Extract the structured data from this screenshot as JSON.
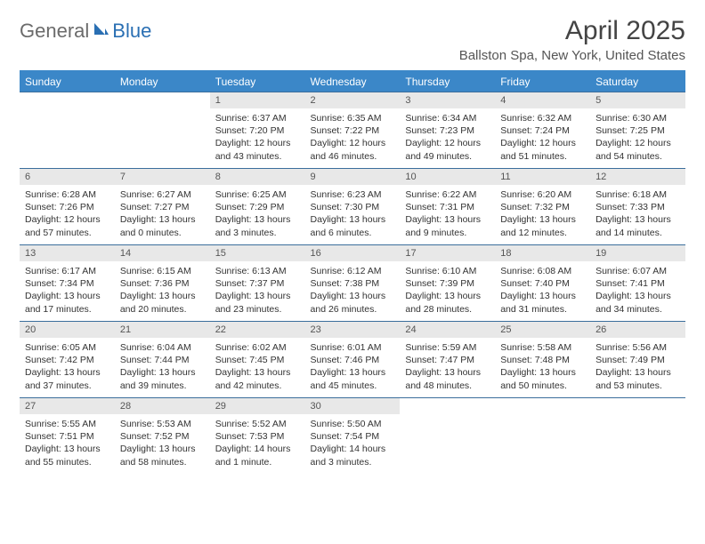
{
  "header": {
    "logo_general": "General",
    "logo_blue": "Blue",
    "month_title": "April 2025",
    "location": "Ballston Spa, New York, United States"
  },
  "styling": {
    "header_bg": "#3b87c8",
    "header_text": "#ffffff",
    "day_num_bg": "#e8e8e8",
    "border_color": "#3b6e9c",
    "page_bg": "#ffffff",
    "text_color": "#333333"
  },
  "days_header": [
    "Sunday",
    "Monday",
    "Tuesday",
    "Wednesday",
    "Thursday",
    "Friday",
    "Saturday"
  ],
  "weeks": [
    [
      null,
      null,
      {
        "num": "1",
        "sunrise": "Sunrise: 6:37 AM",
        "sunset": "Sunset: 7:20 PM",
        "daylight": "Daylight: 12 hours and 43 minutes."
      },
      {
        "num": "2",
        "sunrise": "Sunrise: 6:35 AM",
        "sunset": "Sunset: 7:22 PM",
        "daylight": "Daylight: 12 hours and 46 minutes."
      },
      {
        "num": "3",
        "sunrise": "Sunrise: 6:34 AM",
        "sunset": "Sunset: 7:23 PM",
        "daylight": "Daylight: 12 hours and 49 minutes."
      },
      {
        "num": "4",
        "sunrise": "Sunrise: 6:32 AM",
        "sunset": "Sunset: 7:24 PM",
        "daylight": "Daylight: 12 hours and 51 minutes."
      },
      {
        "num": "5",
        "sunrise": "Sunrise: 6:30 AM",
        "sunset": "Sunset: 7:25 PM",
        "daylight": "Daylight: 12 hours and 54 minutes."
      }
    ],
    [
      {
        "num": "6",
        "sunrise": "Sunrise: 6:28 AM",
        "sunset": "Sunset: 7:26 PM",
        "daylight": "Daylight: 12 hours and 57 minutes."
      },
      {
        "num": "7",
        "sunrise": "Sunrise: 6:27 AM",
        "sunset": "Sunset: 7:27 PM",
        "daylight": "Daylight: 13 hours and 0 minutes."
      },
      {
        "num": "8",
        "sunrise": "Sunrise: 6:25 AM",
        "sunset": "Sunset: 7:29 PM",
        "daylight": "Daylight: 13 hours and 3 minutes."
      },
      {
        "num": "9",
        "sunrise": "Sunrise: 6:23 AM",
        "sunset": "Sunset: 7:30 PM",
        "daylight": "Daylight: 13 hours and 6 minutes."
      },
      {
        "num": "10",
        "sunrise": "Sunrise: 6:22 AM",
        "sunset": "Sunset: 7:31 PM",
        "daylight": "Daylight: 13 hours and 9 minutes."
      },
      {
        "num": "11",
        "sunrise": "Sunrise: 6:20 AM",
        "sunset": "Sunset: 7:32 PM",
        "daylight": "Daylight: 13 hours and 12 minutes."
      },
      {
        "num": "12",
        "sunrise": "Sunrise: 6:18 AM",
        "sunset": "Sunset: 7:33 PM",
        "daylight": "Daylight: 13 hours and 14 minutes."
      }
    ],
    [
      {
        "num": "13",
        "sunrise": "Sunrise: 6:17 AM",
        "sunset": "Sunset: 7:34 PM",
        "daylight": "Daylight: 13 hours and 17 minutes."
      },
      {
        "num": "14",
        "sunrise": "Sunrise: 6:15 AM",
        "sunset": "Sunset: 7:36 PM",
        "daylight": "Daylight: 13 hours and 20 minutes."
      },
      {
        "num": "15",
        "sunrise": "Sunrise: 6:13 AM",
        "sunset": "Sunset: 7:37 PM",
        "daylight": "Daylight: 13 hours and 23 minutes."
      },
      {
        "num": "16",
        "sunrise": "Sunrise: 6:12 AM",
        "sunset": "Sunset: 7:38 PM",
        "daylight": "Daylight: 13 hours and 26 minutes."
      },
      {
        "num": "17",
        "sunrise": "Sunrise: 6:10 AM",
        "sunset": "Sunset: 7:39 PM",
        "daylight": "Daylight: 13 hours and 28 minutes."
      },
      {
        "num": "18",
        "sunrise": "Sunrise: 6:08 AM",
        "sunset": "Sunset: 7:40 PM",
        "daylight": "Daylight: 13 hours and 31 minutes."
      },
      {
        "num": "19",
        "sunrise": "Sunrise: 6:07 AM",
        "sunset": "Sunset: 7:41 PM",
        "daylight": "Daylight: 13 hours and 34 minutes."
      }
    ],
    [
      {
        "num": "20",
        "sunrise": "Sunrise: 6:05 AM",
        "sunset": "Sunset: 7:42 PM",
        "daylight": "Daylight: 13 hours and 37 minutes."
      },
      {
        "num": "21",
        "sunrise": "Sunrise: 6:04 AM",
        "sunset": "Sunset: 7:44 PM",
        "daylight": "Daylight: 13 hours and 39 minutes."
      },
      {
        "num": "22",
        "sunrise": "Sunrise: 6:02 AM",
        "sunset": "Sunset: 7:45 PM",
        "daylight": "Daylight: 13 hours and 42 minutes."
      },
      {
        "num": "23",
        "sunrise": "Sunrise: 6:01 AM",
        "sunset": "Sunset: 7:46 PM",
        "daylight": "Daylight: 13 hours and 45 minutes."
      },
      {
        "num": "24",
        "sunrise": "Sunrise: 5:59 AM",
        "sunset": "Sunset: 7:47 PM",
        "daylight": "Daylight: 13 hours and 48 minutes."
      },
      {
        "num": "25",
        "sunrise": "Sunrise: 5:58 AM",
        "sunset": "Sunset: 7:48 PM",
        "daylight": "Daylight: 13 hours and 50 minutes."
      },
      {
        "num": "26",
        "sunrise": "Sunrise: 5:56 AM",
        "sunset": "Sunset: 7:49 PM",
        "daylight": "Daylight: 13 hours and 53 minutes."
      }
    ],
    [
      {
        "num": "27",
        "sunrise": "Sunrise: 5:55 AM",
        "sunset": "Sunset: 7:51 PM",
        "daylight": "Daylight: 13 hours and 55 minutes."
      },
      {
        "num": "28",
        "sunrise": "Sunrise: 5:53 AM",
        "sunset": "Sunset: 7:52 PM",
        "daylight": "Daylight: 13 hours and 58 minutes."
      },
      {
        "num": "29",
        "sunrise": "Sunrise: 5:52 AM",
        "sunset": "Sunset: 7:53 PM",
        "daylight": "Daylight: 14 hours and 1 minute."
      },
      {
        "num": "30",
        "sunrise": "Sunrise: 5:50 AM",
        "sunset": "Sunset: 7:54 PM",
        "daylight": "Daylight: 14 hours and 3 minutes."
      },
      null,
      null,
      null
    ]
  ]
}
